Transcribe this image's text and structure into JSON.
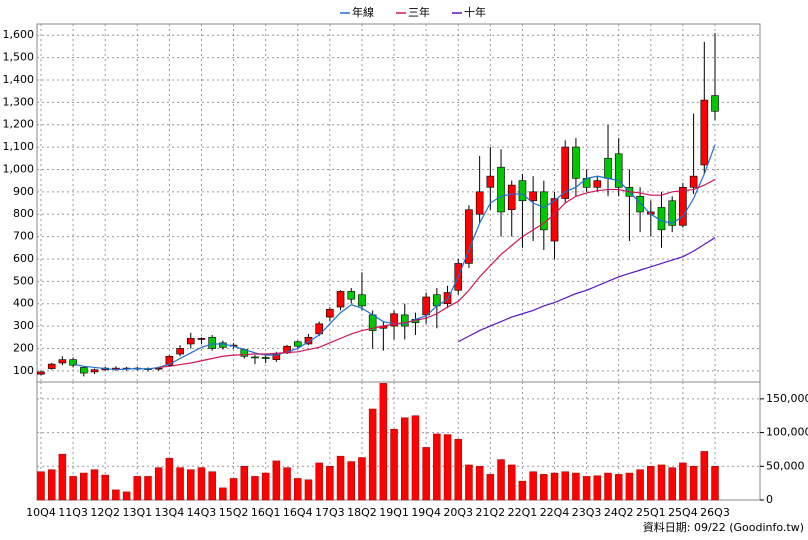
{
  "chart_data": [
    {
      "type": "candlestick",
      "categories": [
        "10Q4",
        null,
        null,
        "11Q3",
        null,
        null,
        "12Q2",
        null,
        null,
        "13Q1",
        null,
        null,
        "13Q4",
        null,
        null,
        "14Q3",
        null,
        null,
        "15Q2",
        null,
        null,
        "16Q1",
        null,
        null,
        "16Q4",
        null,
        null,
        "17Q3",
        null,
        null,
        "18Q2",
        null,
        null,
        "19Q1",
        null,
        null,
        "19Q4",
        null,
        null,
        "20Q3",
        null,
        null,
        "21Q2",
        null,
        null,
        "22Q1",
        null,
        null,
        "22Q4",
        null,
        null,
        "23Q3",
        null,
        null,
        "24Q2",
        null,
        null,
        "25Q1",
        null,
        null,
        "25Q4",
        null,
        null,
        "26Q3"
      ],
      "open": [
        85,
        110,
        135,
        150,
        115,
        95,
        105,
        105,
        108,
        112,
        106,
        110,
        125,
        175,
        220,
        240,
        250,
        225,
        210,
        195,
        162,
        160,
        150,
        180,
        230,
        220,
        265,
        340,
        385,
        455,
        440,
        350,
        290,
        300,
        350,
        330,
        350,
        440,
        400,
        460,
        580,
        800,
        920,
        1010,
        820,
        950,
        860,
        900,
        680,
        870,
        1100,
        960,
        920,
        1050,
        1070,
        920,
        880,
        800,
        830,
        860,
        750,
        920,
        1020,
        1330
      ],
      "high": [
        100,
        135,
        165,
        160,
        120,
        110,
        118,
        120,
        118,
        118,
        115,
        118,
        170,
        215,
        270,
        250,
        260,
        235,
        225,
        200,
        170,
        168,
        185,
        215,
        235,
        265,
        320,
        385,
        460,
        470,
        540,
        370,
        320,
        370,
        400,
        360,
        450,
        470,
        480,
        600,
        840,
        1060,
        1100,
        1090,
        950,
        980,
        970,
        950,
        900,
        1130,
        1140,
        1000,
        970,
        1200,
        1140,
        1000,
        920,
        860,
        900,
        880,
        940,
        1250,
        1570,
        1610
      ],
      "low": [
        80,
        105,
        125,
        115,
        75,
        85,
        98,
        100,
        100,
        102,
        98,
        100,
        120,
        165,
        200,
        220,
        190,
        195,
        200,
        155,
        130,
        135,
        140,
        175,
        200,
        215,
        255,
        320,
        370,
        400,
        370,
        200,
        190,
        240,
        240,
        260,
        310,
        290,
        380,
        440,
        560,
        760,
        820,
        700,
        700,
        650,
        680,
        640,
        600,
        850,
        880,
        900,
        900,
        880,
        880,
        680,
        720,
        700,
        650,
        720,
        740,
        890,
        980,
        1220
      ],
      "close": [
        95,
        130,
        150,
        125,
        90,
        105,
        112,
        112,
        112,
        108,
        110,
        112,
        165,
        200,
        245,
        245,
        200,
        205,
        215,
        165,
        158,
        155,
        175,
        210,
        210,
        250,
        310,
        375,
        455,
        420,
        390,
        280,
        300,
        355,
        300,
        315,
        430,
        390,
        450,
        580,
        820,
        900,
        970,
        810,
        930,
        860,
        900,
        730,
        870,
        1100,
        960,
        920,
        950,
        960,
        920,
        880,
        810,
        810,
        730,
        750,
        920,
        970,
        1310,
        1260
      ],
      "up_color": "#ff0000",
      "down_color": "#00c800",
      "series": [
        {
          "name": "年線",
          "color": "#1e6fd0",
          "values": [
            null,
            null,
            null,
            130,
            120,
            115,
            110,
            105,
            108,
            110,
            108,
            115,
            130,
            155,
            180,
            205,
            220,
            220,
            210,
            195,
            180,
            170,
            170,
            185,
            200,
            230,
            260,
            310,
            360,
            395,
            380,
            350,
            320,
            310,
            310,
            330,
            345,
            390,
            420,
            520,
            640,
            760,
            850,
            880,
            890,
            890,
            850,
            830,
            860,
            900,
            920,
            960,
            970,
            960,
            950,
            900,
            850,
            800,
            770,
            760,
            790,
            870,
            980,
            1110
          ]
        },
        {
          "name": "三年",
          "color": "#d0145a",
          "values": [
            null,
            null,
            null,
            null,
            null,
            null,
            null,
            null,
            null,
            null,
            null,
            115,
            120,
            128,
            135,
            145,
            155,
            165,
            170,
            172,
            175,
            175,
            178,
            182,
            185,
            195,
            205,
            225,
            245,
            265,
            280,
            290,
            300,
            310,
            315,
            325,
            335,
            355,
            385,
            410,
            460,
            520,
            570,
            620,
            660,
            700,
            730,
            760,
            800,
            850,
            880,
            895,
            905,
            910,
            910,
            900,
            895,
            885,
            885,
            900,
            905,
            910,
            930,
            955
          ]
        },
        {
          "name": "十年",
          "color": "#5a14c8",
          "values": [
            null,
            null,
            null,
            null,
            null,
            null,
            null,
            null,
            null,
            null,
            null,
            null,
            null,
            null,
            null,
            null,
            null,
            null,
            null,
            null,
            null,
            null,
            null,
            null,
            null,
            null,
            null,
            null,
            null,
            null,
            null,
            null,
            null,
            null,
            null,
            null,
            null,
            null,
            null,
            230,
            255,
            280,
            300,
            320,
            340,
            355,
            370,
            390,
            405,
            425,
            445,
            460,
            480,
            500,
            520,
            535,
            550,
            565,
            580,
            595,
            610,
            635,
            665,
            695
          ]
        }
      ],
      "ylim": [
        50,
        1650
      ],
      "yticks": [
        100,
        200,
        300,
        400,
        500,
        600,
        700,
        800,
        900,
        {
          "value": 1000,
          "label": "1,000"
        },
        {
          "value": 1100,
          "label": "1,100"
        },
        {
          "value": 1200,
          "label": "1,200"
        },
        {
          "value": 1300,
          "label": "1,300"
        },
        {
          "value": 1400,
          "label": "1,400"
        },
        {
          "value": 1500,
          "label": "1,500"
        },
        {
          "value": 1600,
          "label": "1,600"
        }
      ],
      "grid": true,
      "legend": "top"
    },
    {
      "type": "bar",
      "values": [
        42000,
        45000,
        68000,
        35000,
        40000,
        45000,
        37000,
        15000,
        12000,
        35000,
        35000,
        48000,
        62000,
        48000,
        45000,
        48000,
        42000,
        18000,
        32000,
        50000,
        35000,
        40000,
        58000,
        48000,
        32000,
        30000,
        55000,
        50000,
        65000,
        57000,
        63000,
        135000,
        173000,
        105000,
        122000,
        125000,
        78000,
        98000,
        97000,
        90000,
        52000,
        50000,
        38000,
        60000,
        52000,
        28000,
        42000,
        38000,
        40000,
        42000,
        40000,
        35000,
        36000,
        40000,
        38000,
        40000,
        45000,
        50000,
        52000,
        48000,
        55000,
        50000,
        72000,
        50000
      ],
      "color": "#ff0000",
      "ylim": [
        0,
        175000
      ],
      "yticks": [
        0,
        {
          "value": 50000,
          "label": "50,000"
        },
        {
          "value": 100000,
          "label": "100,000"
        },
        {
          "value": 150000,
          "label": "150,000"
        }
      ],
      "grid": true,
      "axis_side": "right"
    }
  ],
  "source": "資料日期: 09/22 (Goodinfo.tw)"
}
